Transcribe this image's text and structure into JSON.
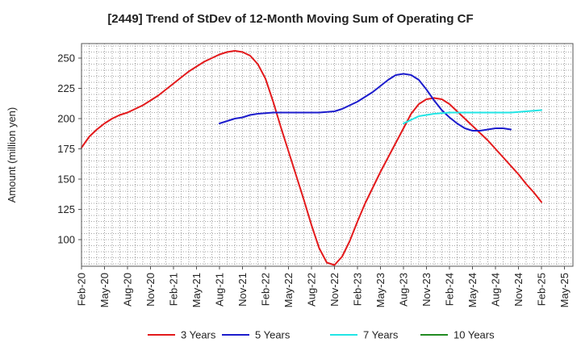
{
  "chart_data": {
    "type": "line",
    "title": "[2449]  Trend of StDev of 12-Month Moving Sum of Operating CF",
    "xlabel": "",
    "ylabel": "Amount (million yen)",
    "ylim": [
      78,
      262
    ],
    "yticks": [
      100,
      125,
      150,
      175,
      200,
      225,
      250
    ],
    "x_tick_labels": [
      "Feb-20",
      "May-20",
      "Aug-20",
      "Nov-20",
      "Feb-21",
      "May-21",
      "Aug-21",
      "Nov-21",
      "Feb-22",
      "May-22",
      "Aug-22",
      "Nov-22",
      "Feb-23",
      "May-23",
      "Aug-23",
      "Nov-23",
      "Feb-24",
      "May-24",
      "Aug-24",
      "Nov-24",
      "Feb-25",
      "May-25"
    ],
    "x_tick_month_index": [
      0,
      3,
      6,
      9,
      12,
      15,
      18,
      21,
      24,
      27,
      30,
      33,
      36,
      39,
      42,
      45,
      48,
      51,
      54,
      57,
      60,
      63
    ],
    "grid": true,
    "legend_position": "bottom",
    "series": [
      {
        "name": "3 Years",
        "color": "#e31a1c",
        "x_start_month_index": 0,
        "values": [
          176,
          185,
          191,
          196,
          200,
          203,
          205,
          208,
          211,
          215,
          219,
          224,
          229,
          234,
          239,
          243,
          247,
          250,
          253,
          255,
          256,
          255,
          252,
          245,
          233,
          214,
          193,
          173,
          153,
          133,
          112,
          93,
          81,
          79,
          86,
          99,
          115,
          130,
          143,
          156,
          168,
          180,
          192,
          204,
          212,
          216,
          217,
          216,
          212,
          206,
          200,
          194,
          188,
          182,
          175,
          168,
          161,
          154,
          146,
          139,
          131
        ]
      },
      {
        "name": "5 Years",
        "color": "#1c1ccc",
        "x_start_month_index": 18,
        "values": [
          196,
          198,
          200,
          201,
          203,
          204,
          204.5,
          205,
          205,
          205,
          205,
          205,
          205,
          205,
          205.5,
          206,
          208,
          211,
          214,
          218,
          222,
          227,
          232,
          236,
          237,
          236,
          232,
          224,
          215,
          207,
          201,
          196,
          192,
          190,
          190,
          191,
          192,
          192,
          191
        ]
      },
      {
        "name": "7 Years",
        "color": "#22e5e5",
        "x_start_month_index": 42,
        "values": [
          196,
          199,
          202,
          203,
          204,
          204.5,
          205,
          205,
          205,
          205,
          205,
          205,
          205,
          205,
          205,
          205.5,
          206,
          206.5,
          207
        ]
      },
      {
        "name": "10 Years",
        "color": "#228b22",
        "x_start_month_index": 0,
        "values": []
      }
    ]
  }
}
